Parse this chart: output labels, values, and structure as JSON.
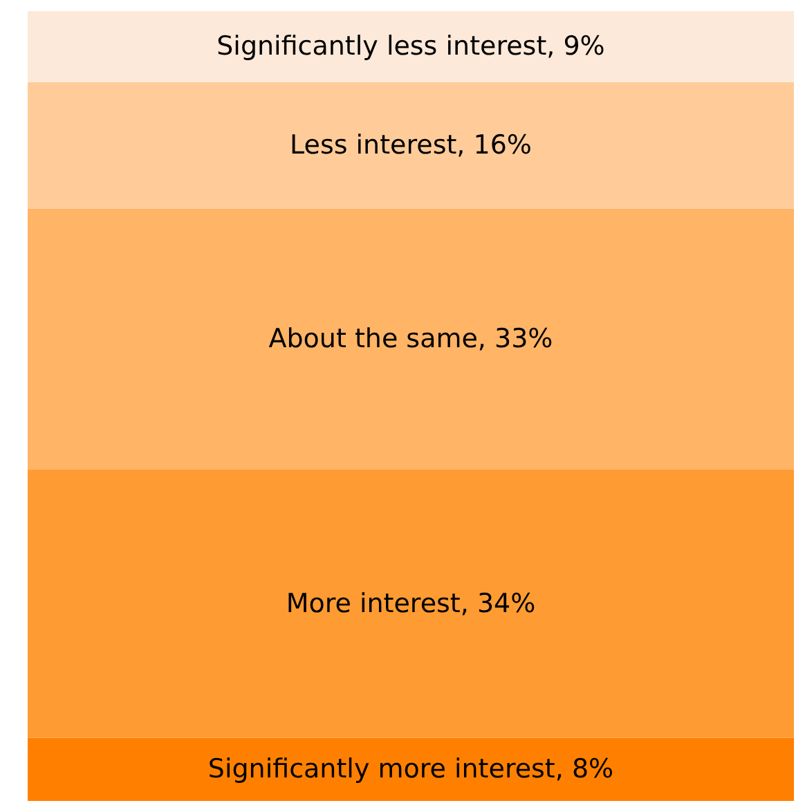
{
  "chart_data": {
    "type": "bar",
    "stacked": true,
    "categories": [
      null
    ],
    "ylim": [
      0,
      100
    ],
    "series": [
      {
        "color": "#ff8000",
        "values": [
          8
        ],
        "value_labels": [
          "Significantly more interest, 8%"
        ]
      },
      {
        "color": "#ff9b33",
        "values": [
          34
        ],
        "value_labels": [
          "More interest, 34%"
        ]
      },
      {
        "color": "#ffb466",
        "values": [
          33
        ],
        "value_labels": [
          "About the same, 33%"
        ]
      },
      {
        "color": "#ffcc99",
        "values": [
          16
        ],
        "value_labels": [
          "Less interest, 16%"
        ]
      },
      {
        "color": "#fde9d9",
        "values": [
          9
        ],
        "value_labels": [
          "Significantly less interest, 9%"
        ]
      }
    ]
  }
}
